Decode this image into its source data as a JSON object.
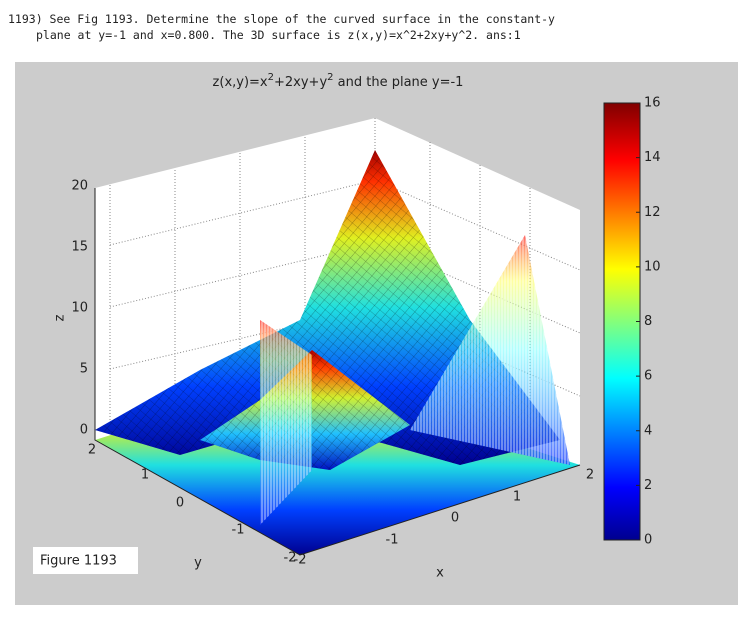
{
  "question": {
    "lines": [
      "1193) See Fig 1193. Determine the slope of the curved surface in the constant-y",
      "plane at y=-1 and x=0.800. The 3D surface is z(x,y)=x^2+2xy+y^2. ans:1"
    ]
  },
  "figure": {
    "title_parts": [
      "z(x,y)=x",
      "2",
      "+2xy+y",
      "2",
      " and the plane y=-1"
    ],
    "zlabel": "z",
    "xlabel": "x",
    "ylabel": "y",
    "zticks": [
      0,
      5,
      10,
      15,
      20
    ],
    "yticks": [
      2,
      1,
      0,
      -1,
      -2
    ],
    "xticks": [
      -2,
      -1,
      0,
      1,
      2
    ],
    "colorbar_ticks": [
      0,
      2,
      4,
      6,
      8,
      10,
      12,
      14,
      16
    ],
    "caption": "Figure 1193"
  }
}
